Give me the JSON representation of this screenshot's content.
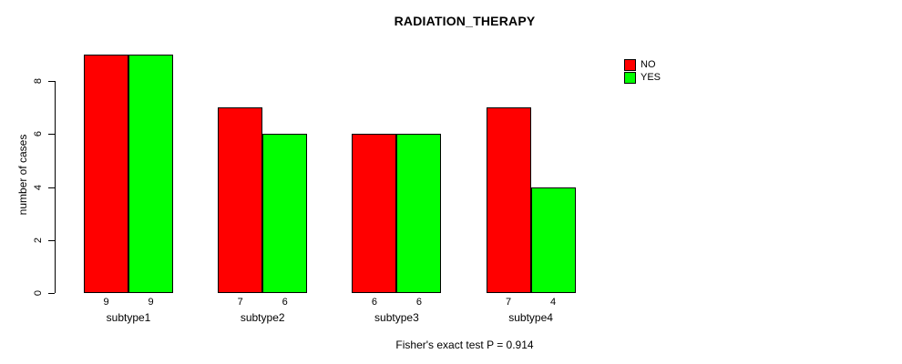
{
  "chart_data": {
    "type": "bar",
    "title": "RADIATION_THERAPY",
    "xlabel": "",
    "ylabel": "number of cases",
    "categories": [
      "subtype1",
      "subtype2",
      "subtype3",
      "subtype4"
    ],
    "series": [
      {
        "name": "NO",
        "color": "#ff0000",
        "values": [
          9,
          7,
          6,
          7
        ]
      },
      {
        "name": "YES",
        "color": "#00ff00",
        "values": [
          9,
          6,
          6,
          4
        ]
      }
    ],
    "ylim": [
      0,
      9
    ],
    "yticks": [
      0,
      2,
      4,
      6,
      8
    ],
    "grid": false,
    "legend_position": "top-right",
    "show_bar_values": true,
    "annotation": "Fisher's exact test P = 0.914"
  }
}
